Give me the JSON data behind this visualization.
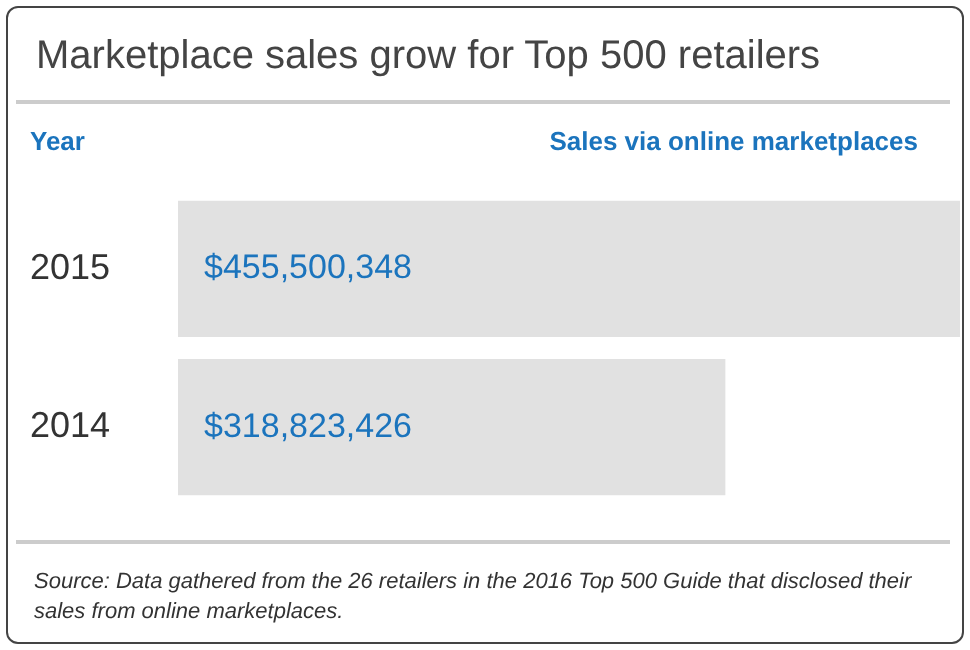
{
  "chart_data": {
    "type": "bar",
    "orientation": "horizontal",
    "title": "Marketplace sales grow for Top 500 retailers",
    "ylabel": "Year",
    "xlabel": "Sales via online marketplaces",
    "categories": [
      "2015",
      "2014"
    ],
    "values": [
      455500348,
      318823426
    ],
    "value_labels": [
      "$455,500,348",
      "$318,823,426"
    ],
    "color": "#e1e1e1",
    "legend": false,
    "tick_labels": "y",
    "annotations": [
      "Source: Data gathered from the 26 retailers in the 2016 Top 500 Guide that disclosed their sales from online marketplaces."
    ]
  }
}
